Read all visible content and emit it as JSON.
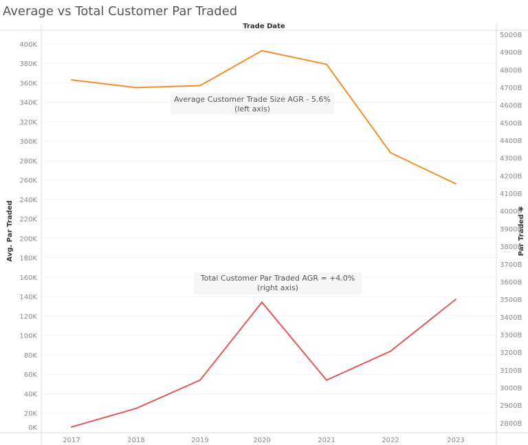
{
  "chart_data": {
    "type": "line",
    "title": "Average vs Total Customer Par Traded",
    "xlabel": "Trade Date",
    "ylabel_left": "Avg. Par Traded",
    "ylabel_right": "Par Traded ✱",
    "categories": [
      "2017",
      "2018",
      "2019",
      "2020",
      "2021",
      "2022",
      "2023"
    ],
    "left_ticks": [
      "0K",
      "20K",
      "40K",
      "60K",
      "80K",
      "100K",
      "120K",
      "140K",
      "160K",
      "180K",
      "200K",
      "220K",
      "240K",
      "260K",
      "280K",
      "300K",
      "320K",
      "340K",
      "360K",
      "380K",
      "400K"
    ],
    "right_ticks": [
      "2800B",
      "2900B",
      "3000B",
      "3100B",
      "3200B",
      "3300B",
      "3400B",
      "3500B",
      "3600B",
      "3700B",
      "3800B",
      "3900B",
      "4000B",
      "4100B",
      "4200B",
      "4300B",
      "4400B",
      "4500B",
      "4600B",
      "4700B",
      "4800B",
      "4900B",
      "5000B"
    ],
    "ylim_left": [
      0,
      414
    ],
    "ylim_right": [
      2745,
      5023
    ],
    "grid": true,
    "series": [
      {
        "axis": "left",
        "unit": "K",
        "color": "#f28e2b",
        "values": [
          363,
          355,
          357,
          393,
          379,
          288,
          256
        ]
      },
      {
        "axis": "right",
        "unit": "B",
        "color": "#e15759",
        "values": [
          2777,
          2882,
          3042,
          3483,
          3042,
          3206,
          3500
        ]
      }
    ],
    "annotations": [
      {
        "line1": "Average Customer Trade Size AGR - 5.6%",
        "line2": "(left axis)"
      },
      {
        "line1": "Total Customer Par Traded AGR = +4.0%",
        "line2": "(right axis)"
      }
    ]
  }
}
